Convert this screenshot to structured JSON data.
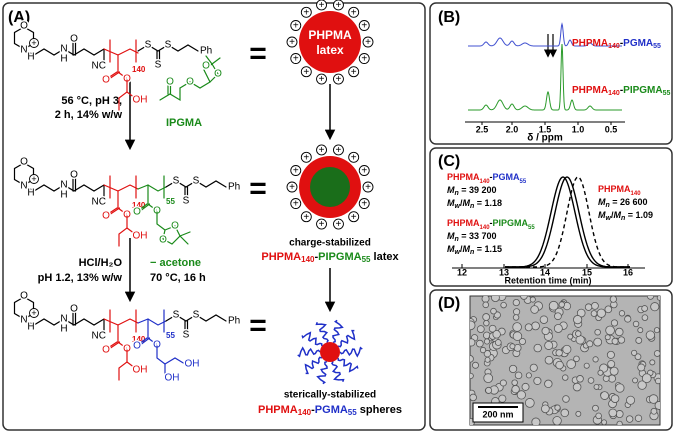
{
  "panel_a": {
    "label": "(A)",
    "eq": "=",
    "plus": "+",
    "atoms": {
      "O": "O",
      "N": "N",
      "H": "H",
      "S": "S",
      "Ph": "Ph",
      "NC": "NC",
      "OH": "OH"
    },
    "n1": "140",
    "n2": "55",
    "latex": [
      "PHPMA",
      "latex"
    ],
    "step1": [
      "56 °C, pH 3,",
      "2 h, 14% w/w"
    ],
    "monomer": "IPGMA",
    "step2": [
      "HCl/H₂O",
      "pH 1.2, 13% w/w"
    ],
    "byproduct": "− acetone",
    "step2b": "70 °C, 16 h",
    "mid_caption": "charge-stabilized",
    "mid_polymer": {
      "a": "PHPMA",
      "a_sub": "140",
      "sep": "-",
      "b": "PIPGMA",
      "b_sub": "55",
      "suffix": " latex"
    },
    "bottom_caption": "sterically-stabilized",
    "bottom_polymer": {
      "a": "PHPMA",
      "a_sub": "140",
      "sep": "-",
      "b": "PGMA",
      "b_sub": "55",
      "suffix": " spheres"
    }
  },
  "panel_b": {
    "label": "(B)",
    "xticks": [
      "2.5",
      "2.0",
      "1.5",
      "1.0",
      "0.5"
    ],
    "xlabel": "δ / ppm",
    "top_series": {
      "a": "PHPMA",
      "a_sub": "140",
      "sep": "-",
      "b": "PGMA",
      "b_sub": "55"
    },
    "bottom_series": {
      "a": "PHPMA",
      "a_sub": "140",
      "sep": "-",
      "b": "PIPGMA",
      "b_sub": "55"
    }
  },
  "panel_c": {
    "label": "(C)",
    "xticks": [
      "12",
      "13",
      "14",
      "15",
      "16"
    ],
    "xlabel": "Retention time (min)",
    "s1": {
      "name": {
        "a": "PHPMA",
        "a_sub": "140",
        "sep": "-",
        "b": "PGMA",
        "b_sub": "55"
      },
      "mn": {
        "m": "M",
        "sub": "n",
        "val": " = 39 200"
      },
      "disp": {
        "m1": "M",
        "s1": "w",
        "slash": "/",
        "m2": "M",
        "s2": "n",
        "val": " = 1.18"
      }
    },
    "s2": {
      "name": {
        "a": "PHPMA",
        "a_sub": "140",
        "sep": "-",
        "b": "PIPGMA",
        "b_sub": "55"
      },
      "mn": {
        "m": "M",
        "sub": "n",
        "val": " = 33 700"
      },
      "disp": {
        "m1": "M",
        "s1": "w",
        "slash": "/",
        "m2": "M",
        "s2": "n",
        "val": " = 1.15"
      }
    },
    "s3": {
      "name": {
        "a": "PHPMA",
        "a_sub": "140"
      },
      "mn": {
        "m": "M",
        "sub": "n",
        "val": " = 26 600"
      },
      "disp": {
        "m1": "M",
        "s1": "w",
        "slash": "/",
        "m2": "M",
        "s2": "n",
        "val": " = 1.09"
      }
    }
  },
  "panel_d": {
    "label": "(D)",
    "scale_bar": "200 nm"
  }
}
